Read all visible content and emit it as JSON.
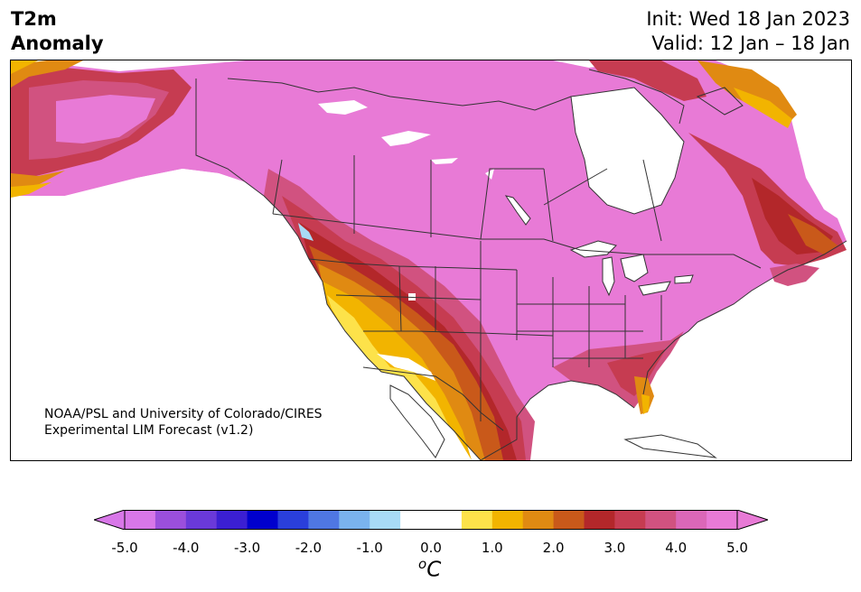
{
  "header": {
    "title_line1": "T2m",
    "title_line2": "Anomaly",
    "init": "Init: Wed 18 Jan 2023",
    "valid": "Valid: 12 Jan – 18 Jan"
  },
  "credit": {
    "line1": "NOAA/PSL and University of Colorado/CIRES",
    "line2": "Experimental LIM Forecast (v1.2)"
  },
  "colorbar": {
    "colors": [
      "#d877e8",
      "#9b4fdc",
      "#6a39d9",
      "#3b1fd2",
      "#0000cd",
      "#2a3fdb",
      "#4f77e3",
      "#7ab3ee",
      "#a8dbf6",
      "#ffffff",
      "#ffffff",
      "#fde24a",
      "#f2b400",
      "#e08a12",
      "#c9591a",
      "#b3272a",
      "#c63c51",
      "#d15280",
      "#db67b8",
      "#e87ad6"
    ],
    "tick_labels": [
      "-5.0",
      "-4.0",
      "-3.0",
      "-2.0",
      "-1.0",
      "0.0",
      "1.0",
      "2.0",
      "3.0",
      "4.0",
      "5.0"
    ],
    "unit_base": "C",
    "unit_sup": "o"
  },
  "legend_colors": {
    "strong_warm": "#e87ad6",
    "yellow": "#fde24a",
    "gold": "#f2b400",
    "orange": "#e08a12",
    "dark_orange": "#c9591a",
    "red": "#b3272a",
    "crimson": "#c63c51",
    "rose": "#d15280",
    "light_blue": "#a8dbf6"
  }
}
